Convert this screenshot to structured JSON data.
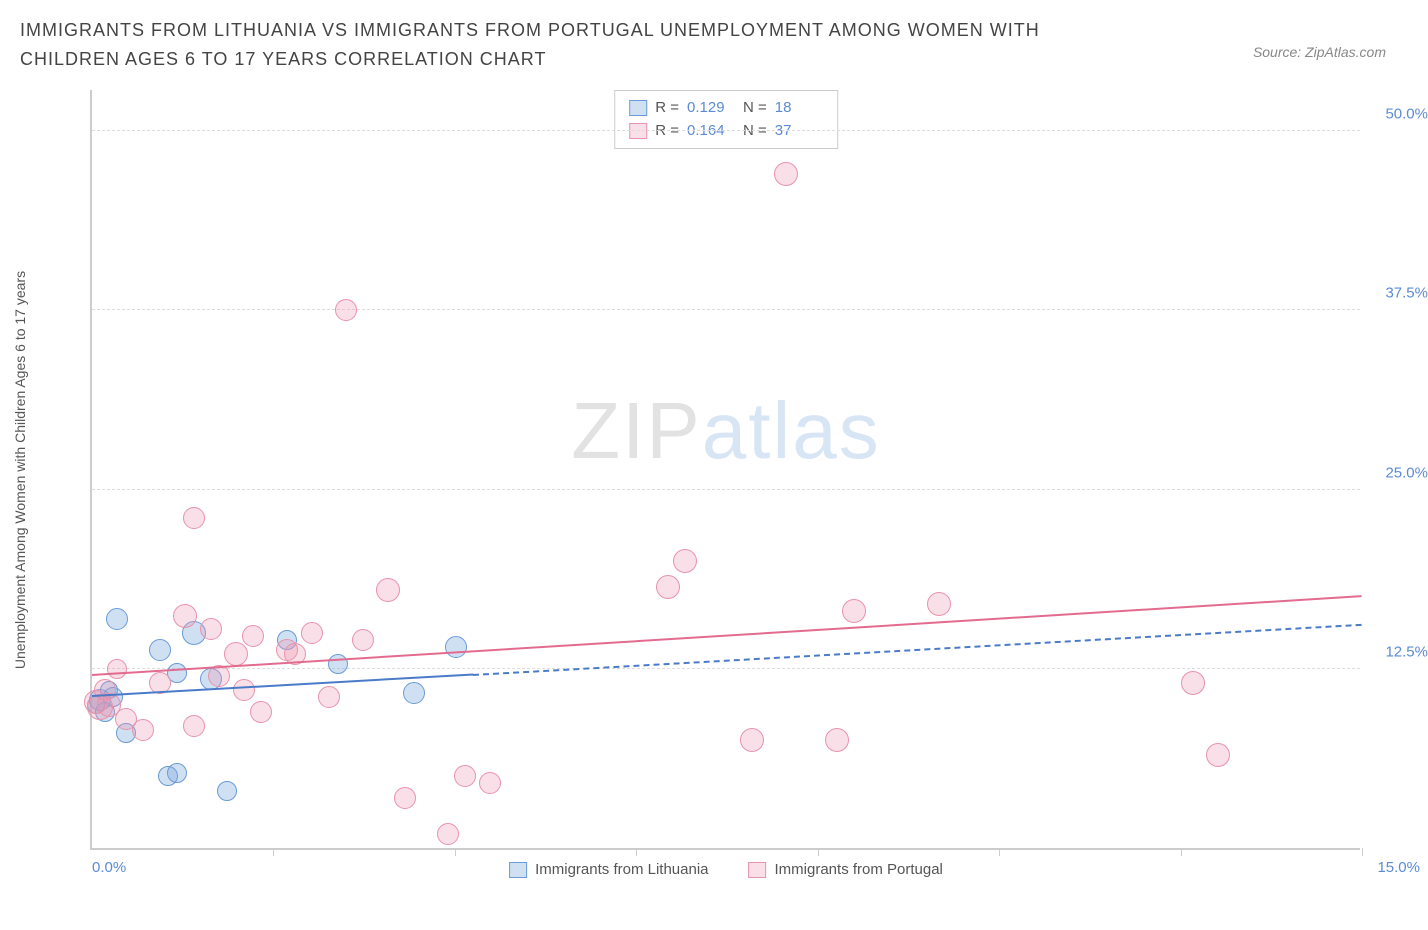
{
  "header": {
    "title": "IMMIGRANTS FROM LITHUANIA VS IMMIGRANTS FROM PORTUGAL UNEMPLOYMENT AMONG WOMEN WITH CHILDREN AGES 6 TO 17 YEARS CORRELATION CHART",
    "source": "Source: ZipAtlas.com"
  },
  "chart": {
    "type": "scatter",
    "y_axis_title": "Unemployment Among Women with Children Ages 6 to 17 years",
    "xlim": [
      0,
      15
    ],
    "ylim": [
      0,
      53
    ],
    "x_min_label": "0.0%",
    "x_max_label": "15.0%",
    "x_tick_positions": [
      2.14,
      4.29,
      6.43,
      8.57,
      10.71,
      12.86,
      15.0
    ],
    "y_ticks": [
      {
        "value": 12.5,
        "label": "12.5%"
      },
      {
        "value": 25.0,
        "label": "25.0%"
      },
      {
        "value": 37.5,
        "label": "37.5%"
      },
      {
        "value": 50.0,
        "label": "50.0%"
      }
    ],
    "grid_color": "#dddddd",
    "background_color": "#ffffff",
    "watermark": {
      "part1": "ZIP",
      "part2": "atlas"
    },
    "series": [
      {
        "name": "Immigrants from Lithuania",
        "key": "lithuania",
        "marker_fill": "rgba(120,165,220,0.35)",
        "marker_stroke": "#6a9bd8",
        "marker_radius": 11,
        "line_color": "#4a7bc8",
        "R": "0.129",
        "N": "18",
        "trend": {
          "x1": 0.0,
          "y1": 10.5,
          "x2": 4.5,
          "y2": 12.0,
          "solid_until_x": 4.5,
          "dashed_to_x": 15.0,
          "dashed_y2": 15.5
        },
        "points": [
          {
            "x": 0.05,
            "y": 10.0,
            "r": 9
          },
          {
            "x": 0.1,
            "y": 10.3,
            "r": 11
          },
          {
            "x": 0.15,
            "y": 9.5,
            "r": 10
          },
          {
            "x": 0.2,
            "y": 11.0,
            "r": 9
          },
          {
            "x": 0.3,
            "y": 16.0,
            "r": 11
          },
          {
            "x": 0.4,
            "y": 8.0,
            "r": 10
          },
          {
            "x": 0.8,
            "y": 13.8,
            "r": 11
          },
          {
            "x": 0.9,
            "y": 5.0,
            "r": 10
          },
          {
            "x": 1.0,
            "y": 5.2,
            "r": 10
          },
          {
            "x": 1.0,
            "y": 12.2,
            "r": 10
          },
          {
            "x": 1.2,
            "y": 15.0,
            "r": 12
          },
          {
            "x": 1.4,
            "y": 11.8,
            "r": 11
          },
          {
            "x": 1.6,
            "y": 4.0,
            "r": 10
          },
          {
            "x": 2.3,
            "y": 14.5,
            "r": 10
          },
          {
            "x": 2.9,
            "y": 12.8,
            "r": 10
          },
          {
            "x": 3.8,
            "y": 10.8,
            "r": 11
          },
          {
            "x": 4.3,
            "y": 14.0,
            "r": 11
          },
          {
            "x": 0.25,
            "y": 10.5,
            "r": 10
          }
        ]
      },
      {
        "name": "Immigrants from Portugal",
        "key": "portugal",
        "marker_fill": "rgba(235,150,175,0.30)",
        "marker_stroke": "#e893ac",
        "marker_radius": 12,
        "line_color": "#e26b8f",
        "R": "0.164",
        "N": "37",
        "trend": {
          "x1": 0.0,
          "y1": 12.0,
          "x2": 15.0,
          "y2": 17.5,
          "solid_until_x": 15.0
        },
        "points": [
          {
            "x": 0.05,
            "y": 10.2,
            "r": 12
          },
          {
            "x": 0.1,
            "y": 9.8,
            "r": 13
          },
          {
            "x": 0.15,
            "y": 11.0,
            "r": 11
          },
          {
            "x": 0.2,
            "y": 10.0,
            "r": 12
          },
          {
            "x": 0.3,
            "y": 12.5,
            "r": 10
          },
          {
            "x": 0.4,
            "y": 9.0,
            "r": 11
          },
          {
            "x": 0.6,
            "y": 8.2,
            "r": 11
          },
          {
            "x": 0.8,
            "y": 11.5,
            "r": 11
          },
          {
            "x": 1.1,
            "y": 16.2,
            "r": 12
          },
          {
            "x": 1.2,
            "y": 23.0,
            "r": 11
          },
          {
            "x": 1.2,
            "y": 8.5,
            "r": 11
          },
          {
            "x": 1.4,
            "y": 15.3,
            "r": 11
          },
          {
            "x": 1.5,
            "y": 12.0,
            "r": 11
          },
          {
            "x": 1.7,
            "y": 13.5,
            "r": 12
          },
          {
            "x": 1.8,
            "y": 11.0,
            "r": 11
          },
          {
            "x": 1.9,
            "y": 14.8,
            "r": 11
          },
          {
            "x": 2.0,
            "y": 9.5,
            "r": 11
          },
          {
            "x": 2.3,
            "y": 13.8,
            "r": 11
          },
          {
            "x": 2.4,
            "y": 13.5,
            "r": 11
          },
          {
            "x": 2.6,
            "y": 15.0,
            "r": 11
          },
          {
            "x": 2.8,
            "y": 10.5,
            "r": 11
          },
          {
            "x": 3.0,
            "y": 37.5,
            "r": 11
          },
          {
            "x": 3.2,
            "y": 14.5,
            "r": 11
          },
          {
            "x": 3.5,
            "y": 18.0,
            "r": 12
          },
          {
            "x": 3.7,
            "y": 3.5,
            "r": 11
          },
          {
            "x": 4.2,
            "y": 1.0,
            "r": 11
          },
          {
            "x": 4.4,
            "y": 5.0,
            "r": 11
          },
          {
            "x": 4.7,
            "y": 4.5,
            "r": 11
          },
          {
            "x": 6.8,
            "y": 18.2,
            "r": 12
          },
          {
            "x": 7.0,
            "y": 20.0,
            "r": 12
          },
          {
            "x": 7.8,
            "y": 7.5,
            "r": 12
          },
          {
            "x": 8.2,
            "y": 47.0,
            "r": 12
          },
          {
            "x": 8.8,
            "y": 7.5,
            "r": 12
          },
          {
            "x": 9.0,
            "y": 16.5,
            "r": 12
          },
          {
            "x": 10.0,
            "y": 17.0,
            "r": 12
          },
          {
            "x": 13.0,
            "y": 11.5,
            "r": 12
          },
          {
            "x": 13.3,
            "y": 6.5,
            "r": 12
          }
        ]
      }
    ],
    "legend_stats_labels": {
      "r": "R =",
      "n": "N ="
    },
    "bottom_legend": [
      {
        "swatch_fill": "rgba(120,165,220,0.35)",
        "swatch_stroke": "#6a9bd8",
        "label": "Immigrants from Lithuania"
      },
      {
        "swatch_fill": "rgba(235,150,175,0.30)",
        "swatch_stroke": "#e893ac",
        "label": "Immigrants from Portugal"
      }
    ]
  }
}
